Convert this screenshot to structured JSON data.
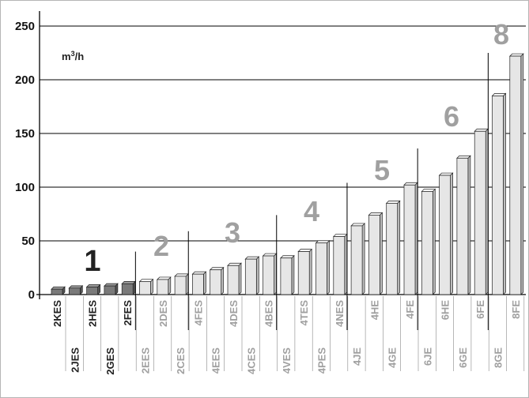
{
  "chart_data": {
    "type": "bar",
    "unit": "m³/h",
    "yticks": [
      0,
      50,
      100,
      150,
      200,
      250
    ],
    "ylim": [
      0,
      262
    ],
    "grid": true,
    "categories": [
      "2KES",
      "2JES",
      "2HES",
      "2GES",
      "2FES",
      "2EES",
      "2DES",
      "2CES",
      "4FES",
      "4EES",
      "4DES",
      "4CES",
      "4BES",
      "4VES",
      "4TES",
      "4PES",
      "4NES",
      "4JE",
      "4HE",
      "4GE",
      "4FE",
      "6JE",
      "6HE",
      "6GE",
      "6FE",
      "8GE",
      "8FE"
    ],
    "values": [
      5,
      6,
      7,
      8,
      10,
      12,
      14,
      17,
      19,
      23,
      27,
      33,
      36,
      34,
      40,
      48,
      54,
      64,
      74,
      85,
      102,
      96,
      111,
      127,
      152,
      185,
      222
    ],
    "groups": [
      {
        "label": "1",
        "color": "#222222",
        "members": [
          "2KES",
          "2JES",
          "2HES",
          "2GES",
          "2FES"
        ]
      },
      {
        "label": "2",
        "color": "#a0a0a0",
        "members": [
          "2EES",
          "2DES",
          "2CES"
        ]
      },
      {
        "label": "3",
        "color": "#a0a0a0",
        "members": [
          "4FES",
          "4EES",
          "4DES",
          "4CES",
          "4BES"
        ]
      },
      {
        "label": "4",
        "color": "#a0a0a0",
        "members": [
          "4VES",
          "4TES",
          "4PES",
          "4NES"
        ]
      },
      {
        "label": "5",
        "color": "#a0a0a0",
        "members": [
          "4JE",
          "4HE",
          "4GE",
          "4FE"
        ]
      },
      {
        "label": "6",
        "color": "#a0a0a0",
        "members": [
          "6JE",
          "6HE",
          "6GE",
          "6FE"
        ]
      },
      {
        "label": "8",
        "color": "#a0a0a0",
        "members": [
          "8GE",
          "8FE"
        ]
      }
    ],
    "colors": {
      "dark_bar": "#7a7a7a",
      "light_bar": "#e6e6e6",
      "bar_edge": "#222222",
      "dark_label": "#222222",
      "light_label": "#a0a0a0",
      "grid": "#000000"
    }
  }
}
